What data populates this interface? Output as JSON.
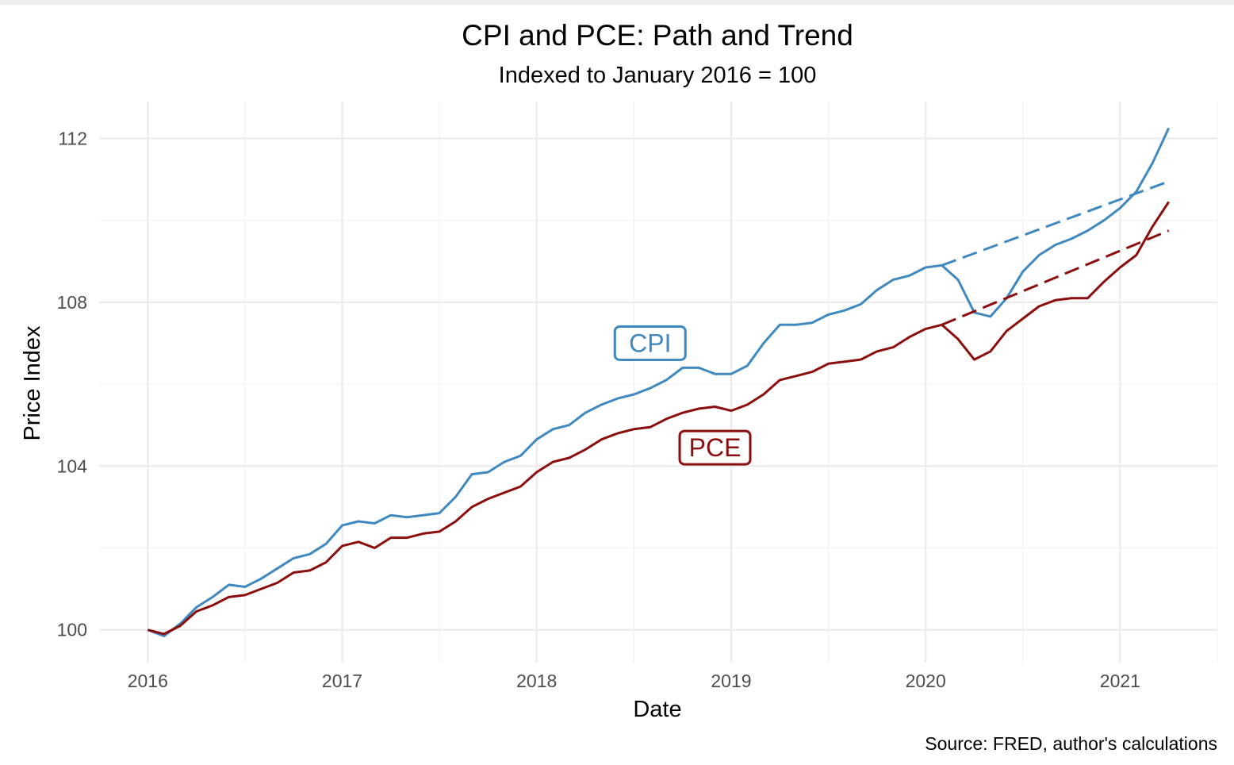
{
  "chart_data": {
    "type": "line",
    "title": "CPI and PCE: Path and Trend",
    "subtitle": "Indexed to January 2016 = 100",
    "xlabel": "Date",
    "ylabel": "Price Index",
    "caption": "Source: FRED, author's calculations",
    "xlim": [
      "2015-10",
      "2021-07"
    ],
    "ylim": [
      99.2,
      112.9
    ],
    "x_ticks": [
      "2016",
      "2017",
      "2018",
      "2019",
      "2020",
      "2021"
    ],
    "y_ticks": [
      100,
      104,
      108,
      112
    ],
    "grid": true,
    "colors": {
      "CPI": "#3f88c0",
      "PCE": "#8b0d0d"
    },
    "series": [
      {
        "name": "CPI",
        "style": "solid",
        "x": [
          "2016-01",
          "2016-02",
          "2016-03",
          "2016-04",
          "2016-05",
          "2016-06",
          "2016-07",
          "2016-08",
          "2016-09",
          "2016-10",
          "2016-11",
          "2016-12",
          "2017-01",
          "2017-02",
          "2017-03",
          "2017-04",
          "2017-05",
          "2017-06",
          "2017-07",
          "2017-08",
          "2017-09",
          "2017-10",
          "2017-11",
          "2017-12",
          "2018-01",
          "2018-02",
          "2018-03",
          "2018-04",
          "2018-05",
          "2018-06",
          "2018-07",
          "2018-08",
          "2018-09",
          "2018-10",
          "2018-11",
          "2018-12",
          "2019-01",
          "2019-02",
          "2019-03",
          "2019-04",
          "2019-05",
          "2019-06",
          "2019-07",
          "2019-08",
          "2019-09",
          "2019-10",
          "2019-11",
          "2019-12",
          "2020-01",
          "2020-02",
          "2020-03",
          "2020-04",
          "2020-05",
          "2020-06",
          "2020-07",
          "2020-08",
          "2020-09",
          "2020-10",
          "2020-11",
          "2020-12",
          "2021-01",
          "2021-02",
          "2021-03",
          "2021-04"
        ],
        "values": [
          100.0,
          99.85,
          100.15,
          100.55,
          100.8,
          101.1,
          101.05,
          101.25,
          101.5,
          101.75,
          101.85,
          102.1,
          102.55,
          102.65,
          102.6,
          102.8,
          102.75,
          102.8,
          102.85,
          103.25,
          103.8,
          103.85,
          104.1,
          104.25,
          104.65,
          104.9,
          105.0,
          105.3,
          105.5,
          105.65,
          105.75,
          105.9,
          106.1,
          106.4,
          106.4,
          106.25,
          106.25,
          106.45,
          107.0,
          107.45,
          107.45,
          107.5,
          107.7,
          107.8,
          107.95,
          108.3,
          108.55,
          108.65,
          108.85,
          108.9,
          108.55,
          107.75,
          107.65,
          108.1,
          108.75,
          109.15,
          109.4,
          109.55,
          109.75,
          110.0,
          110.3,
          110.7,
          111.4,
          112.25
        ]
      },
      {
        "name": "PCE",
        "style": "solid",
        "x": [
          "2016-01",
          "2016-02",
          "2016-03",
          "2016-04",
          "2016-05",
          "2016-06",
          "2016-07",
          "2016-08",
          "2016-09",
          "2016-10",
          "2016-11",
          "2016-12",
          "2017-01",
          "2017-02",
          "2017-03",
          "2017-04",
          "2017-05",
          "2017-06",
          "2017-07",
          "2017-08",
          "2017-09",
          "2017-10",
          "2017-11",
          "2017-12",
          "2018-01",
          "2018-02",
          "2018-03",
          "2018-04",
          "2018-05",
          "2018-06",
          "2018-07",
          "2018-08",
          "2018-09",
          "2018-10",
          "2018-11",
          "2018-12",
          "2019-01",
          "2019-02",
          "2019-03",
          "2019-04",
          "2019-05",
          "2019-06",
          "2019-07",
          "2019-08",
          "2019-09",
          "2019-10",
          "2019-11",
          "2019-12",
          "2020-01",
          "2020-02",
          "2020-03",
          "2020-04",
          "2020-05",
          "2020-06",
          "2020-07",
          "2020-08",
          "2020-09",
          "2020-10",
          "2020-11",
          "2020-12",
          "2021-01",
          "2021-02",
          "2021-03",
          "2021-04"
        ],
        "values": [
          100.0,
          99.9,
          100.1,
          100.45,
          100.6,
          100.8,
          100.85,
          101.0,
          101.15,
          101.4,
          101.45,
          101.65,
          102.05,
          102.15,
          102.0,
          102.25,
          102.25,
          102.35,
          102.4,
          102.65,
          103.0,
          103.2,
          103.35,
          103.5,
          103.85,
          104.1,
          104.2,
          104.4,
          104.65,
          104.8,
          104.9,
          104.95,
          105.15,
          105.3,
          105.4,
          105.45,
          105.35,
          105.5,
          105.75,
          106.1,
          106.2,
          106.3,
          106.5,
          106.55,
          106.6,
          106.8,
          106.9,
          107.15,
          107.35,
          107.45,
          107.1,
          106.6,
          106.8,
          107.3,
          107.6,
          107.9,
          108.05,
          108.1,
          108.1,
          108.5,
          108.85,
          109.15,
          109.85,
          110.45
        ]
      },
      {
        "name": "CPI",
        "style": "dashed",
        "x": [
          "2020-02",
          "2021-04"
        ],
        "values": [
          108.9,
          110.95
        ]
      },
      {
        "name": "PCE",
        "style": "dashed",
        "x": [
          "2020-02",
          "2021-04"
        ],
        "values": [
          107.45,
          109.75
        ]
      }
    ],
    "annotations": [
      {
        "text": "CPI",
        "x": "2018-08",
        "y": 107.0,
        "color": "#3f88c0"
      },
      {
        "text": "PCE",
        "x": "2018-12",
        "y": 104.45,
        "color": "#8b0d0d"
      }
    ]
  }
}
